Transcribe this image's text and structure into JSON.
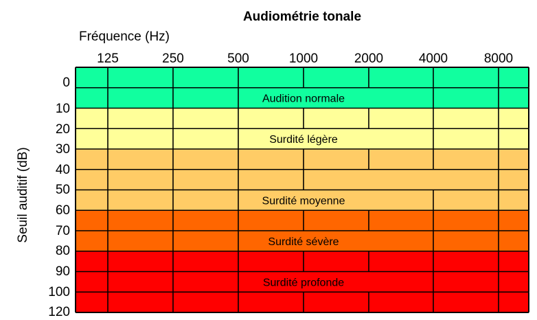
{
  "chart_data": {
    "type": "heatmap",
    "title": "Audiométrie tonale",
    "xlabel": "Fréquence (Hz)",
    "ylabel": "Seuil auditif (dB)",
    "x_ticks": [
      "125",
      "250",
      "500",
      "1000",
      "2000",
      "4000",
      "8000"
    ],
    "y_ticks": [
      "0",
      "10",
      "20",
      "30",
      "40",
      "50",
      "60",
      "70",
      "80",
      "90",
      "100",
      "120"
    ],
    "grid": true,
    "bands": [
      {
        "label": "Audition normale",
        "from_db": 0,
        "to_db": 20,
        "color": "#11ff9f"
      },
      {
        "label": "Surdité légère",
        "from_db": 20,
        "to_db": 40,
        "color": "#ffff99"
      },
      {
        "label": "Surdité moyenne",
        "from_db": 40,
        "to_db": 70,
        "color": "#ffcc66"
      },
      {
        "label": "Surdité sévère",
        "from_db": 70,
        "to_db": 90,
        "color": "#ff6600"
      },
      {
        "label": "Surdité profonde",
        "from_db": 90,
        "to_db": 120,
        "color": "#ff0000"
      }
    ]
  }
}
